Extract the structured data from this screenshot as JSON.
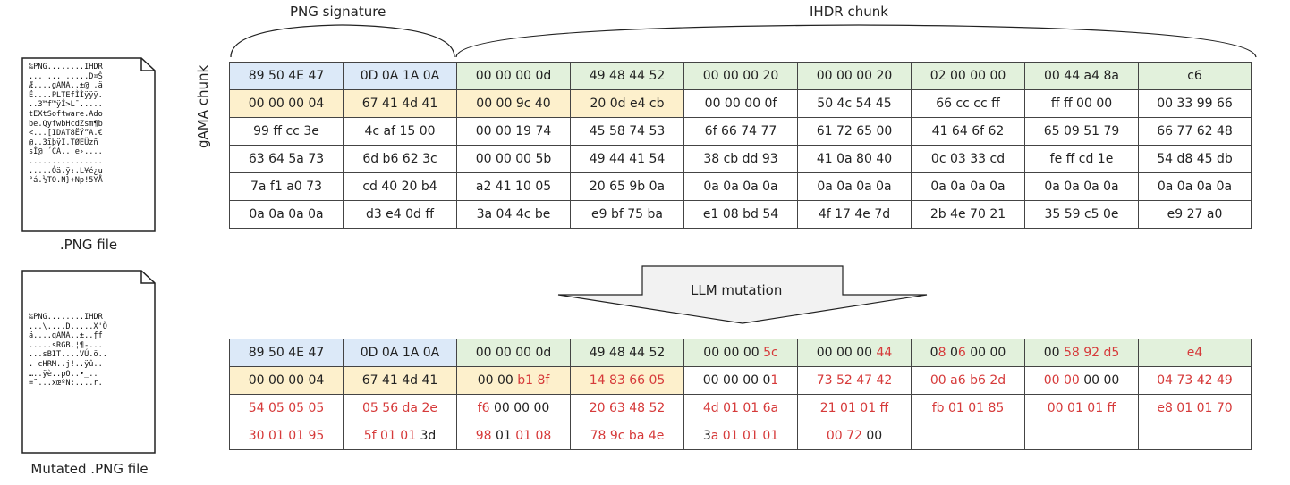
{
  "labels": {
    "png_signature": "PNG signature",
    "ihdr_chunk": "IHDR chunk",
    "gama_chunk": "gAMA chunk",
    "mutation": "LLM mutation"
  },
  "files": {
    "original": {
      "caption": ".PNG file",
      "lines": [
        "‰PNG........IHDR",
        "... ... .....D¤Š",
        "Æ....gAMA..±@ .ä",
        "Ë....PLTEfÌÌÿÿÿ.",
        "..3™f™ÿÌ>L¯.....",
        "tEXtSoftware.Ado",
        "be.QyfwbHcdZsm¶b",
        "<...[IDAT8ËŸ“A.€",
        "@..3ĩþÿÍ.TØEÜzñ",
        "sÍ@ ´ÇA.. e›....",
        "................",
        ".....Óä.ÿ:.L¥é¿u",
        "°á.½TO.N}+Np!5YÅ"
      ]
    },
    "mutated": {
      "caption": "Mutated .PNG file",
      "lines": [
        "‰PNG........IHDR",
        "...\\....D.....X'Õ",
        "ä....gAMA..±..ƒf",
        ".....sRGB.¦¶-...",
        "...sBIT....VÚ.ö..",
        ". cHRM..j!..ÿû..",
        "…..ÿè..pO..•_..",
        "=˜...xœºN:....r."
      ]
    }
  },
  "original_rows": [
    [
      {
        "t": "89 50 4E 47",
        "c": "blue"
      },
      {
        "t": "0D 0A 1A 0A",
        "c": "blue"
      },
      {
        "t": "00 00 00 0d",
        "c": "green"
      },
      {
        "t": "49 48 44 52",
        "c": "green"
      },
      {
        "t": "00 00 00 20",
        "c": "green"
      },
      {
        "t": "00 00 00 20",
        "c": "green"
      },
      {
        "t": "02 00 00 00",
        "c": "green"
      },
      {
        "t": "00 44 a4 8a",
        "c": "green"
      },
      {
        "t": "c6",
        "c": "green"
      }
    ],
    [
      {
        "t": "00 00 00 04",
        "c": "yellow"
      },
      {
        "t": "67 41 4d 41",
        "c": "yellow"
      },
      {
        "t": "00 00 9c 40",
        "c": "yellow"
      },
      {
        "t": "20 0d e4 cb",
        "c": "yellow"
      },
      {
        "t": "00 00 00 0f",
        "c": ""
      },
      {
        "t": "50 4c 54 45",
        "c": ""
      },
      {
        "t": "66 cc cc ff",
        "c": ""
      },
      {
        "t": "ff ff 00 00",
        "c": ""
      },
      {
        "t": "00 33 99 66",
        "c": ""
      }
    ],
    [
      {
        "t": "99 ff cc 3e",
        "c": ""
      },
      {
        "t": "4c af 15 00",
        "c": ""
      },
      {
        "t": "00 00 19 74",
        "c": ""
      },
      {
        "t": "45 58 74 53",
        "c": ""
      },
      {
        "t": "6f 66 74 77",
        "c": ""
      },
      {
        "t": "61 72 65 00",
        "c": ""
      },
      {
        "t": "41 64 6f 62",
        "c": ""
      },
      {
        "t": "65 09 51 79",
        "c": ""
      },
      {
        "t": "66 77 62 48",
        "c": ""
      }
    ],
    [
      {
        "t": "63 64 5a 73",
        "c": ""
      },
      {
        "t": "6d b6 62 3c",
        "c": ""
      },
      {
        "t": "00 00 00 5b",
        "c": ""
      },
      {
        "t": "49 44 41 54",
        "c": ""
      },
      {
        "t": "38 cb dd 93",
        "c": ""
      },
      {
        "t": "41 0a 80 40",
        "c": ""
      },
      {
        "t": "0c 03 33 cd",
        "c": ""
      },
      {
        "t": "fe ff cd 1e",
        "c": ""
      },
      {
        "t": "54 d8 45 db",
        "c": ""
      }
    ],
    [
      {
        "t": "7a f1 a0 73",
        "c": ""
      },
      {
        "t": "cd 40 20 b4",
        "c": ""
      },
      {
        "t": "a2 41 10 05",
        "c": ""
      },
      {
        "t": "20 65 9b 0a",
        "c": ""
      },
      {
        "t": "0a 0a 0a 0a",
        "c": ""
      },
      {
        "t": "0a 0a 0a 0a",
        "c": ""
      },
      {
        "t": "0a 0a 0a 0a",
        "c": ""
      },
      {
        "t": "0a 0a 0a 0a",
        "c": ""
      },
      {
        "t": "0a 0a 0a 0a",
        "c": ""
      }
    ],
    [
      {
        "t": "0a 0a 0a 0a",
        "c": ""
      },
      {
        "t": "d3 e4 0d ff",
        "c": ""
      },
      {
        "t": "3a 04 4c be",
        "c": ""
      },
      {
        "t": "e9 bf 75 ba",
        "c": ""
      },
      {
        "t": "e1 08 bd 54",
        "c": ""
      },
      {
        "t": "4f 17 4e 7d",
        "c": ""
      },
      {
        "t": "2b 4e 70 21",
        "c": ""
      },
      {
        "t": "35 59 c5 0e",
        "c": ""
      },
      {
        "t": "e9 27 a0",
        "c": ""
      }
    ]
  ],
  "mutated_rows": [
    [
      {
        "c": "blue",
        "p": [
          [
            "89 50 4E 47",
            ""
          ]
        ]
      },
      {
        "c": "blue",
        "p": [
          [
            "0D 0A 1A 0A",
            ""
          ]
        ]
      },
      {
        "c": "green",
        "p": [
          [
            "00 00 00 0d",
            ""
          ]
        ]
      },
      {
        "c": "green",
        "p": [
          [
            "49 48 44 52",
            ""
          ]
        ]
      },
      {
        "c": "green",
        "p": [
          [
            "00 00 00 ",
            ""
          ],
          [
            "5c",
            "r"
          ]
        ]
      },
      {
        "c": "green",
        "p": [
          [
            "00 00 00 ",
            ""
          ],
          [
            "44",
            "r"
          ]
        ]
      },
      {
        "c": "green",
        "p": [
          [
            "0",
            ""
          ],
          [
            "8",
            "r"
          ],
          [
            " 0",
            ""
          ],
          [
            "6",
            "r"
          ],
          [
            " 00 00",
            ""
          ]
        ]
      },
      {
        "c": "green",
        "p": [
          [
            "00 ",
            ""
          ],
          [
            "58 92 d5",
            "r"
          ]
        ]
      },
      {
        "c": "green",
        "p": [
          [
            "e4",
            "r"
          ]
        ]
      }
    ],
    [
      {
        "c": "yellow",
        "p": [
          [
            "00 00 00 04",
            ""
          ]
        ]
      },
      {
        "c": "yellow",
        "p": [
          [
            "67 41 4d 41",
            ""
          ]
        ]
      },
      {
        "c": "yellow",
        "p": [
          [
            "00 00 ",
            ""
          ],
          [
            "b1 8f",
            "r"
          ]
        ]
      },
      {
        "c": "yellow",
        "p": [
          [
            "14 83 66 05",
            "r"
          ]
        ]
      },
      {
        "c": "",
        "p": [
          [
            "00 00 00 0",
            ""
          ],
          [
            "1",
            "r"
          ]
        ]
      },
      {
        "c": "",
        "p": [
          [
            "73 52 47 42",
            "r"
          ]
        ]
      },
      {
        "c": "",
        "p": [
          [
            "00 a6 b6 2d",
            "r"
          ]
        ]
      },
      {
        "c": "",
        "p": [
          [
            "00 00 ",
            "r"
          ],
          [
            "00 00",
            ""
          ]
        ]
      },
      {
        "c": "",
        "p": [
          [
            "04 73 42 49",
            "r"
          ]
        ]
      }
    ],
    [
      {
        "c": "",
        "p": [
          [
            "54 05 05 05",
            "r"
          ]
        ]
      },
      {
        "c": "",
        "p": [
          [
            "05 56 da 2e",
            "r"
          ]
        ]
      },
      {
        "c": "",
        "p": [
          [
            "f6 ",
            "r"
          ],
          [
            "00 00 00",
            ""
          ]
        ]
      },
      {
        "c": "",
        "p": [
          [
            "20 63 48 52",
            "r"
          ]
        ]
      },
      {
        "c": "",
        "p": [
          [
            "4d 01 01 6a",
            "r"
          ]
        ]
      },
      {
        "c": "",
        "p": [
          [
            "21 01 01 ff",
            "r"
          ]
        ]
      },
      {
        "c": "",
        "p": [
          [
            "fb 01 01 85",
            "r"
          ]
        ]
      },
      {
        "c": "",
        "p": [
          [
            "00 01 01 ff",
            "r"
          ]
        ]
      },
      {
        "c": "",
        "p": [
          [
            "e8 01 01 70",
            "r"
          ]
        ]
      }
    ],
    [
      {
        "c": "",
        "p": [
          [
            "30 01 01 95",
            "r"
          ]
        ]
      },
      {
        "c": "",
        "p": [
          [
            "5f 01 01 ",
            "r"
          ],
          [
            "3d",
            ""
          ]
        ]
      },
      {
        "c": "",
        "p": [
          [
            "98 ",
            "r"
          ],
          [
            "01",
            ""
          ],
          [
            " 01 08",
            "r"
          ]
        ]
      },
      {
        "c": "",
        "p": [
          [
            "78 9c ba 4e",
            "r"
          ]
        ]
      },
      {
        "c": "",
        "p": [
          [
            "3",
            ""
          ],
          [
            "a 01 01 01",
            "r"
          ]
        ]
      },
      {
        "c": "",
        "p": [
          [
            "00 72 ",
            "r"
          ],
          [
            "00",
            ""
          ]
        ]
      },
      {
        "c": "",
        "p": []
      },
      {
        "c": "",
        "p": []
      },
      {
        "c": "",
        "p": []
      }
    ]
  ],
  "colors": {
    "signature": "#dce9f8",
    "ihdr": "#e2f1dc",
    "gama": "#fdf0cc",
    "mutated_text": "#d63a3a"
  }
}
